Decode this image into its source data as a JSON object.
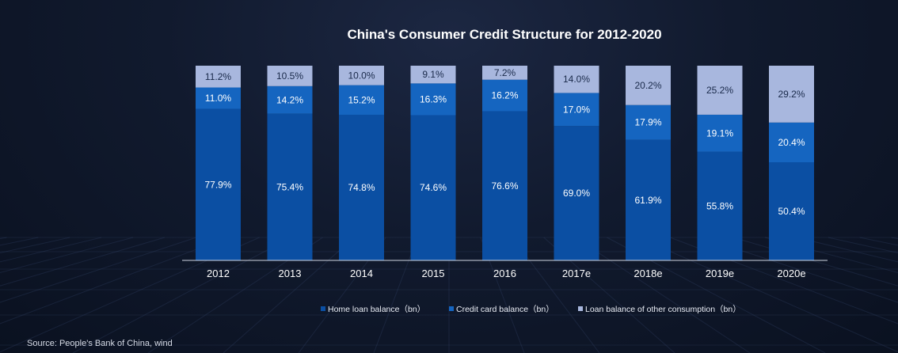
{
  "source": "Source: People's Bank of China, wind",
  "chart_data": {
    "type": "bar",
    "stacked": true,
    "percent_stacked": true,
    "title": "China's Consumer Credit Structure for 2012-2020",
    "xlabel": "",
    "ylabel": "",
    "ylim": [
      0,
      100
    ],
    "grid": false,
    "legend_position": "bottom",
    "categories": [
      "2012",
      "2013",
      "2014",
      "2015",
      "2016",
      "2017e",
      "2018e",
      "2019e",
      "2020e"
    ],
    "series": [
      {
        "name": "Home loan balance（bn）",
        "color": "#0b4fa3",
        "values": [
          77.9,
          75.4,
          74.8,
          74.6,
          76.6,
          69.0,
          61.9,
          55.8,
          50.4
        ],
        "labels": [
          "77.9%",
          "75.4%",
          "74.8%",
          "74.6%",
          "76.6%",
          "69.0%",
          "61.9%",
          "55.8%",
          "50.4%"
        ]
      },
      {
        "name": "Credit card balance（bn）",
        "color": "#1565c0",
        "values": [
          11.0,
          14.2,
          15.2,
          16.3,
          16.2,
          17.0,
          17.9,
          19.1,
          20.4
        ],
        "labels": [
          "11.0%",
          "14.2%",
          "15.2%",
          "16.3%",
          "16.2%",
          "17.0%",
          "17.9%",
          "19.1%",
          "20.4%"
        ]
      },
      {
        "name": "Loan balance of other consumption（bn）",
        "color": "#a8b7de",
        "values": [
          11.2,
          10.5,
          10.0,
          9.1,
          7.2,
          14.0,
          20.2,
          25.2,
          29.2
        ],
        "labels": [
          "11.2%",
          "10.5%",
          "10.0%",
          "9.1%",
          "7.2%",
          "14.0%",
          "20.2%",
          "25.2%",
          "29.2%"
        ]
      }
    ]
  }
}
